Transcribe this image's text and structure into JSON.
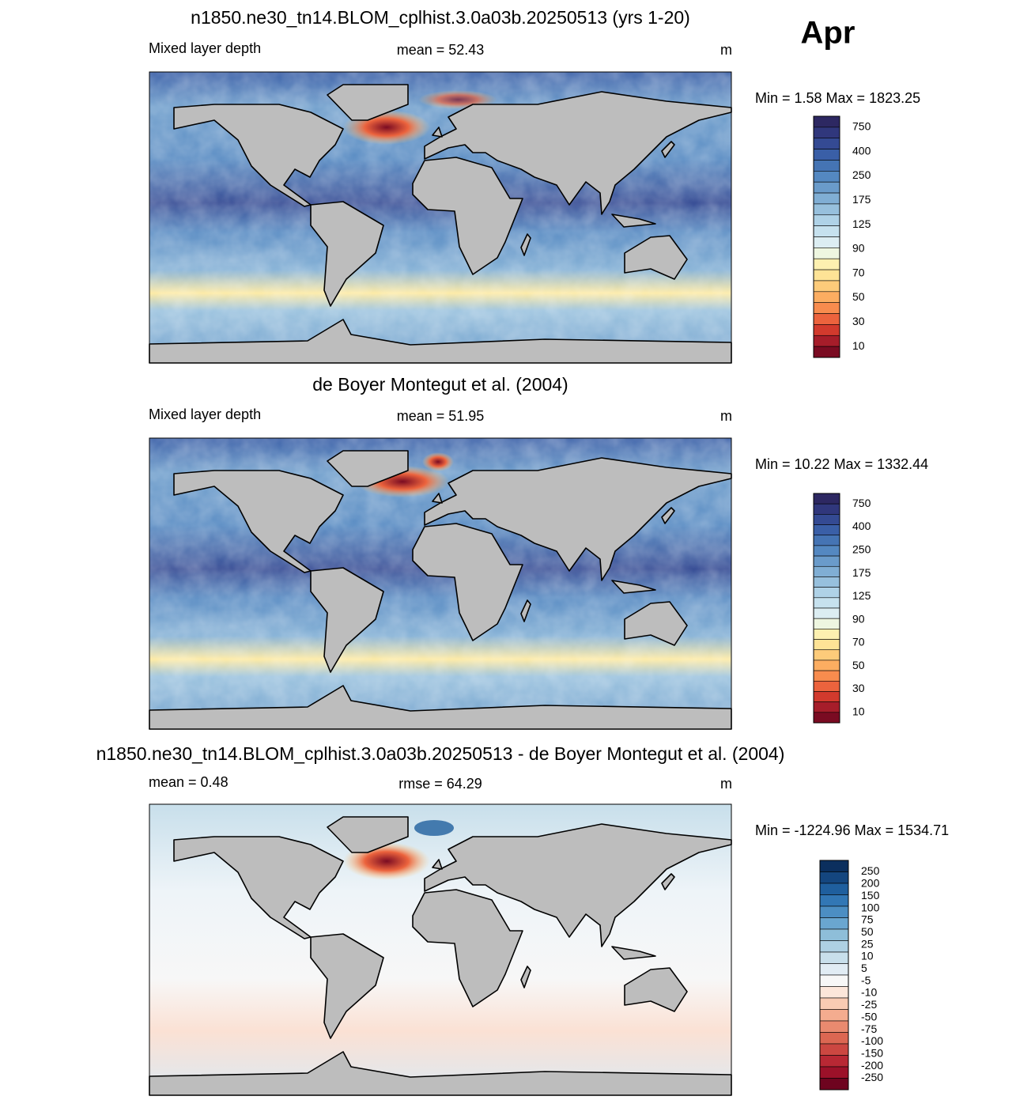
{
  "month": "Apr",
  "panels": [
    {
      "title": "n1850.ne30_tn14.BLOM_cplhist.3.0a03b.20250513 (yrs 1-20)",
      "left": "Mixed layer depth",
      "center": "mean =  52.43",
      "right": "m",
      "minmax": "Min =   1.58 Max = 1823.25",
      "colorbar": {
        "colors": [
          "#2d2862",
          "#30377c",
          "#344a93",
          "#3a5fa7",
          "#4574b4",
          "#5488c1",
          "#6a9bca",
          "#80aed4",
          "#97c0dd",
          "#afd2e7",
          "#c6e1ee",
          "#dcedf2",
          "#eef6e0",
          "#fdf0b0",
          "#fee396",
          "#fdcb7a",
          "#fcad61",
          "#f88c4e",
          "#ec633d",
          "#d23a2d",
          "#a61d2a",
          "#7a0b22"
        ],
        "labels": [
          "750",
          "400",
          "250",
          "175",
          "125",
          "90",
          "70",
          "50",
          "30",
          "10"
        ]
      }
    },
    {
      "title": "de Boyer Montegut et al. (2004)",
      "left": "Mixed layer depth",
      "center": "mean =  51.95",
      "right": "m",
      "minmax": "Min =  10.22 Max = 1332.44",
      "colorbar": {
        "colors": [
          "#2d2862",
          "#30377c",
          "#344a93",
          "#3a5fa7",
          "#4574b4",
          "#5488c1",
          "#6a9bca",
          "#80aed4",
          "#97c0dd",
          "#afd2e7",
          "#c6e1ee",
          "#dcedf2",
          "#eef6e0",
          "#fdf0b0",
          "#fee396",
          "#fdcb7a",
          "#fcad61",
          "#f88c4e",
          "#ec633d",
          "#d23a2d",
          "#a61d2a",
          "#7a0b22"
        ],
        "labels": [
          "750",
          "400",
          "250",
          "175",
          "125",
          "90",
          "70",
          "50",
          "30",
          "10"
        ]
      }
    },
    {
      "title": "n1850.ne30_tn14.BLOM_cplhist.3.0a03b.20250513 - de Boyer Montegut et al. (2004)",
      "left": "mean =   0.48",
      "center": "rmse =  64.29",
      "right": "m",
      "minmax": "Min = -1224.96 Max = 1534.71",
      "colorbar": {
        "colors": [
          "#0b2f5e",
          "#14467f",
          "#1f5f9e",
          "#3277b5",
          "#4c8ec3",
          "#6aa6d0",
          "#8ebed9",
          "#aed0e3",
          "#c8dfeb",
          "#e1ecf4",
          "#f7f7f7",
          "#fce6da",
          "#f9cbb3",
          "#f4ac8f",
          "#e98a6f",
          "#dc6752",
          "#cc4741",
          "#b82834",
          "#9c1129",
          "#6e041f"
        ],
        "labels": [
          "250",
          "200",
          "150",
          "100",
          "75",
          "50",
          "25",
          "10",
          "5",
          "-5",
          "-10",
          "-25",
          "-50",
          "-75",
          "-100",
          "-150",
          "-200",
          "-250"
        ]
      }
    }
  ]
}
